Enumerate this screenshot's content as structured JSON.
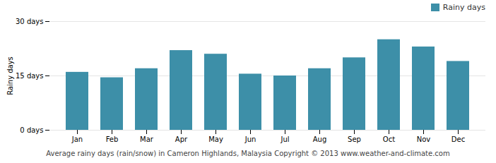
{
  "chart_data": {
    "type": "bar",
    "caption": "Average rainy days (rain/snow) in Cameron Highlands, Malaysia   Copyright © 2013 www.weather-and-climate.com",
    "ylabel": "Rainy days",
    "categories": [
      "Jan",
      "Feb",
      "Mar",
      "Apr",
      "May",
      "Jun",
      "Jul",
      "Aug",
      "Sep",
      "Oct",
      "Nov",
      "Dec"
    ],
    "series": [
      {
        "name": "Rainy days",
        "color": "#3d8fa8",
        "values": [
          16,
          14.5,
          17,
          22,
          21,
          15.5,
          15,
          17,
          20,
          25,
          23,
          19
        ]
      }
    ],
    "ylim": [
      0,
      30
    ],
    "yticks": [
      {
        "value": 0,
        "label": "0 days"
      },
      {
        "value": 15,
        "label": "15 days"
      },
      {
        "value": 30,
        "label": "30 days"
      }
    ],
    "grid": true,
    "legend": "upper right"
  }
}
